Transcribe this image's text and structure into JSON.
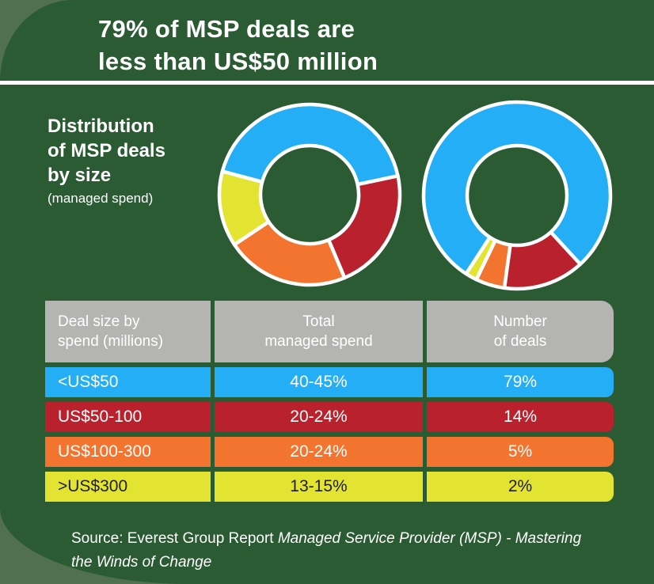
{
  "header": {
    "title": "79% of MSP deals are\nless than US$50 million"
  },
  "chart_label": {
    "title": "Distribution\nof MSP deals\nby size",
    "subtitle": "(managed spend)"
  },
  "colors": {
    "green": "#2B5B33",
    "sage": "#51704E",
    "blue": "#23AEF6",
    "red": "#B9222D",
    "orange": "#F3742F",
    "yellow": "#E3E431",
    "gray": "#B4B4B3",
    "text_dark": "#1E1E1E"
  },
  "chart_data": {
    "type": "pie",
    "subtype": "donut-pair",
    "legend_position": "none",
    "charts": [
      {
        "name": "total-managed-spend",
        "title_ref": "Total managed spend",
        "categories": [
          "<US$50",
          "US$50-100",
          "US$100-300",
          ">US$300"
        ],
        "value_labels": [
          "40-45%",
          "20-24%",
          "20-24%",
          "13-15%"
        ],
        "values": [
          42.5,
          22,
          22,
          13.5
        ],
        "color_keys": [
          "blue",
          "red",
          "orange",
          "yellow"
        ],
        "start_angle_deg": 285
      },
      {
        "name": "number-of-deals",
        "title_ref": "Number of deals",
        "categories": [
          "<US$50",
          "US$50-100",
          "US$100-300",
          ">US$300"
        ],
        "value_labels": [
          "79%",
          "14%",
          "5%",
          "2%"
        ],
        "values": [
          79,
          14,
          5,
          2
        ],
        "color_keys": [
          "blue",
          "red",
          "orange",
          "yellow"
        ],
        "start_angle_deg": 213
      }
    ]
  },
  "table": {
    "headers": [
      "Deal size by\nspend (millions)",
      "Total\nmanaged spend",
      "Number\nof deals"
    ],
    "rows": [
      {
        "deal_size": "<US$50",
        "total_managed_spend": "40-45%",
        "number_of_deals": "79%",
        "color_key": "blue",
        "dark_text": false
      },
      {
        "deal_size": "US$50-100",
        "total_managed_spend": "20-24%",
        "number_of_deals": "14%",
        "color_key": "red",
        "dark_text": false
      },
      {
        "deal_size": "US$100-300",
        "total_managed_spend": "20-24%",
        "number_of_deals": "5%",
        "color_key": "orange",
        "dark_text": false
      },
      {
        "deal_size": ">US$300",
        "total_managed_spend": "13-15%",
        "number_of_deals": "2%",
        "color_key": "yellow",
        "dark_text": true
      }
    ]
  },
  "source": {
    "prefix": "Source: Everest Group Report ",
    "italic_line1": "Managed Service Provider (MSP) - Mastering",
    "italic_line2": "the Winds of Change"
  }
}
